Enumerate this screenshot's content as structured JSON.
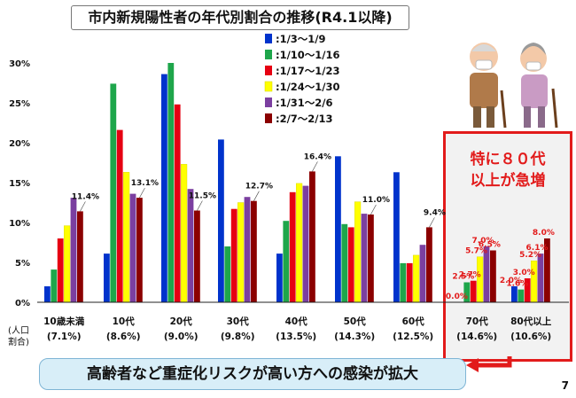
{
  "title": "市内新規陽性者の年代別割合の推移(R4.1以降)",
  "y_unit_label": [
    "(人口",
    "割合)"
  ],
  "callout": "高齢者など重症化リスクが高い方への感染が拡大",
  "page_number": "7",
  "alert": {
    "line1": "特に８０代",
    "line2": "以上が急増",
    "underline": "８０"
  },
  "chart_data": {
    "type": "bar",
    "ylim": [
      0,
      30
    ],
    "yticks": [
      "0%",
      "5%",
      "10%",
      "15%",
      "20%",
      "25%",
      "30%"
    ],
    "categories": [
      "10歳未満",
      "10代",
      "20代",
      "30代",
      "40代",
      "50代",
      "60代",
      "70代",
      "80代以上"
    ],
    "category_shares": [
      "(7.1%)",
      "(8.6%)",
      "(9.0%)",
      "(9.8%)",
      "(13.5%)",
      "(14.3%)",
      "(12.5%)",
      "(14.6%)",
      "(10.6%)"
    ],
    "series": [
      {
        "name": ":1/3〜1/9",
        "color": "#0033cc",
        "values": [
          2.0,
          6.1,
          28.6,
          20.4,
          6.1,
          18.3,
          16.3,
          0.0,
          2.0
        ]
      },
      {
        "name": ":1/10〜1/16",
        "color": "#1ea64b",
        "values": [
          4.1,
          27.4,
          30.0,
          7.0,
          10.2,
          9.8,
          4.9,
          2.5,
          1.6
        ]
      },
      {
        "name": ":1/17〜1/23",
        "color": "#e60012",
        "values": [
          8.0,
          21.6,
          24.8,
          11.7,
          13.8,
          9.4,
          4.9,
          2.7,
          3.0
        ]
      },
      {
        "name": ":1/24〜1/30",
        "color": "#ffff00",
        "values": [
          9.6,
          16.3,
          17.3,
          12.5,
          14.9,
          12.6,
          5.9,
          5.7,
          5.2
        ]
      },
      {
        "name": ":1/31〜2/6",
        "color": "#7b3fa0",
        "values": [
          13.1,
          13.6,
          14.2,
          13.2,
          14.6,
          11.1,
          7.2,
          7.0,
          6.1
        ]
      },
      {
        "name": ":2/7〜2/13",
        "color": "#8b0000",
        "values": [
          11.4,
          13.1,
          11.5,
          12.7,
          16.4,
          11.0,
          9.4,
          6.5,
          8.0
        ]
      }
    ],
    "annotations": [
      {
        "category": 0,
        "series": 5,
        "text": "11.4%"
      },
      {
        "category": 1,
        "series": 5,
        "text": "13.1%"
      },
      {
        "category": 2,
        "series": 5,
        "text": "11.5%"
      },
      {
        "category": 3,
        "series": 5,
        "text": "12.7%"
      },
      {
        "category": 4,
        "series": 5,
        "text": "16.4%"
      },
      {
        "category": 5,
        "series": 5,
        "text": "11.0%"
      },
      {
        "category": 6,
        "series": 5,
        "text": "9.4%"
      }
    ],
    "red_labels": [
      {
        "category": 7,
        "series": 0,
        "text": "0.0%"
      },
      {
        "category": 7,
        "series": 1,
        "text": "2.5%"
      },
      {
        "category": 7,
        "series": 2,
        "text": "2.7%"
      },
      {
        "category": 7,
        "series": 3,
        "text": "5.7%"
      },
      {
        "category": 7,
        "series": 4,
        "text": "7.0%"
      },
      {
        "category": 7,
        "series": 5,
        "text": "6.5%"
      },
      {
        "category": 8,
        "series": 0,
        "text": "2.0%"
      },
      {
        "category": 8,
        "series": 1,
        "text": "1.6%"
      },
      {
        "category": 8,
        "series": 2,
        "text": "3.0%"
      },
      {
        "category": 8,
        "series": 3,
        "text": "5.2%"
      },
      {
        "category": 8,
        "series": 4,
        "text": "6.1%"
      },
      {
        "category": 8,
        "series": 5,
        "text": "8.0%"
      }
    ]
  }
}
